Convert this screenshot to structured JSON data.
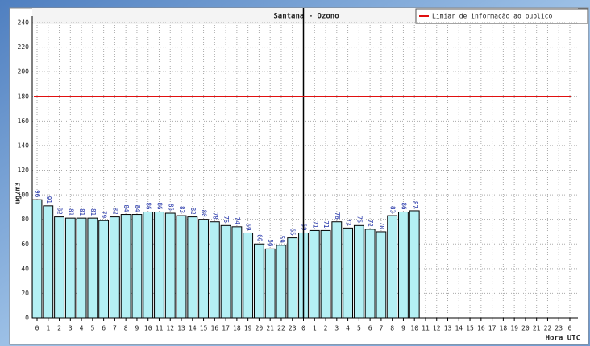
{
  "chart_data": {
    "type": "bar",
    "title": "Santana - Ozono",
    "ylabel": "ug/m3",
    "xlabel": "Hora UTC",
    "categories": [
      "0",
      "1",
      "2",
      "3",
      "4",
      "5",
      "6",
      "7",
      "8",
      "9",
      "10",
      "11",
      "12",
      "13",
      "14",
      "15",
      "16",
      "17",
      "18",
      "19",
      "20",
      "21",
      "22",
      "23",
      "0",
      "1",
      "2",
      "3",
      "4",
      "5",
      "6",
      "7",
      "8",
      "9",
      "10",
      "11",
      "12",
      "13",
      "14",
      "15",
      "16",
      "17",
      "18",
      "19",
      "20",
      "21",
      "22",
      "23",
      "0"
    ],
    "values": [
      96,
      91,
      82,
      81,
      81,
      81,
      79,
      82,
      84,
      84,
      86,
      86,
      85,
      83,
      82,
      80,
      78,
      75,
      74,
      69,
      60,
      56,
      59,
      65,
      69,
      71,
      71,
      78,
      73,
      75,
      72,
      70,
      83,
      86,
      87,
      null,
      null,
      null,
      null,
      null,
      null,
      null,
      null,
      null,
      null,
      null,
      null,
      null,
      null
    ],
    "color": "#b4f0f4",
    "threshold": {
      "name": "Limiar de informação ao publico",
      "value": 180,
      "color": "#e01010"
    },
    "ylim": [
      0,
      240
    ],
    "yticks": [
      0,
      20,
      40,
      60,
      80,
      100,
      120,
      140,
      160,
      180,
      200,
      220,
      240
    ],
    "grid": true
  }
}
